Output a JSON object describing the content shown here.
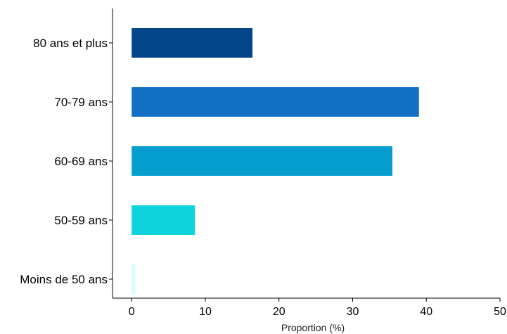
{
  "chart_data": {
    "type": "bar",
    "orientation": "horizontal",
    "categories": [
      "80 ans et plus",
      "70-79 ans",
      "60-69 ans",
      "50-59 ans",
      "Moins de 50 ans"
    ],
    "values": [
      16.4,
      39.0,
      35.4,
      8.6,
      0.5
    ],
    "colors": [
      "#04468A",
      "#1170C6",
      "#049DCE",
      "#0ED3DC",
      "#D6FBFF"
    ],
    "xlabel": "Proportion (%)",
    "xlim": [
      -2.6,
      50
    ],
    "xticks": [
      0,
      10,
      20,
      30,
      40,
      50
    ],
    "tick_labels": [
      "0",
      "10",
      "20",
      "30",
      "40",
      "50"
    ],
    "grid": false,
    "legend": "none"
  }
}
